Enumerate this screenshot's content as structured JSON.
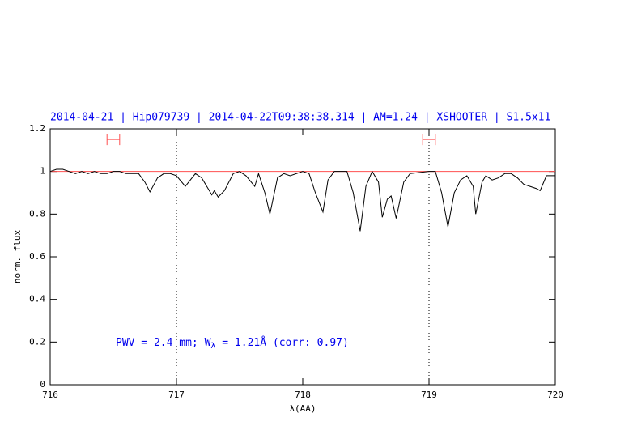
{
  "chart_data": {
    "type": "line",
    "title": "2014-04-21 | Hip079739 | 2014-04-22T09:38:38.314 | AM=1.24 | XSHOOTER | S1.5x11",
    "x_label": "λ(AA)",
    "y_label": "norm. flux",
    "annotation": [
      "PWV = 2.4 mm; W",
      "λ",
      " = 1.21Å (corr: 0.97)"
    ],
    "xlim": [
      716,
      720
    ],
    "ylim": [
      0,
      1.2
    ],
    "xticks": [
      716,
      717,
      718,
      719,
      720
    ],
    "yticks": [
      0,
      0.2,
      0.4,
      0.6,
      0.8,
      1,
      1.2
    ],
    "vlines": [
      717,
      719
    ],
    "hline": {
      "value": 1,
      "color": "#ff5050"
    },
    "intervals": [
      {
        "x": [
          716.45,
          716.55
        ],
        "y": 1.15
      },
      {
        "x": [
          718.95,
          719.05
        ],
        "y": 1.15
      }
    ],
    "series": [
      {
        "name": "flux",
        "color": "#000000",
        "x": [
          716.0,
          716.05,
          716.1,
          716.15,
          716.2,
          716.25,
          716.3,
          716.35,
          716.4,
          716.45,
          716.5,
          716.55,
          716.6,
          716.65,
          716.7,
          716.75,
          716.79,
          716.85,
          716.9,
          716.95,
          717.0,
          717.07,
          717.15,
          717.2,
          717.28,
          717.3,
          717.33,
          717.38,
          717.45,
          717.5,
          717.55,
          717.62,
          717.65,
          717.7,
          717.74,
          717.8,
          717.85,
          717.9,
          718.0,
          718.05,
          718.1,
          718.16,
          718.2,
          718.25,
          718.35,
          718.4,
          718.455,
          718.5,
          718.55,
          718.6,
          718.63,
          718.67,
          718.7,
          718.74,
          718.8,
          718.85,
          719.0,
          719.05,
          719.1,
          719.15,
          719.2,
          719.25,
          719.3,
          719.35,
          719.37,
          719.42,
          719.45,
          719.5,
          719.55,
          719.6,
          719.65,
          719.7,
          719.75,
          719.8,
          719.85,
          719.88,
          719.93,
          720.0
        ],
        "values": [
          1.0,
          1.01,
          1.01,
          1.0,
          0.99,
          1.0,
          0.99,
          1.0,
          0.99,
          0.99,
          1.0,
          1.0,
          0.99,
          0.99,
          0.99,
          0.95,
          0.904,
          0.97,
          0.99,
          0.99,
          0.98,
          0.93,
          0.99,
          0.97,
          0.89,
          0.91,
          0.88,
          0.91,
          0.99,
          1.0,
          0.98,
          0.93,
          0.99,
          0.9,
          0.8,
          0.97,
          0.99,
          0.98,
          1.0,
          0.99,
          0.9,
          0.81,
          0.96,
          1.0,
          1.0,
          0.9,
          0.72,
          0.93,
          1.0,
          0.95,
          0.785,
          0.87,
          0.885,
          0.78,
          0.95,
          0.99,
          1.0,
          1.0,
          0.9,
          0.74,
          0.9,
          0.96,
          0.98,
          0.93,
          0.8,
          0.95,
          0.98,
          0.96,
          0.97,
          0.99,
          0.99,
          0.97,
          0.94,
          0.93,
          0.92,
          0.91,
          0.98,
          0.98
        ]
      }
    ]
  }
}
